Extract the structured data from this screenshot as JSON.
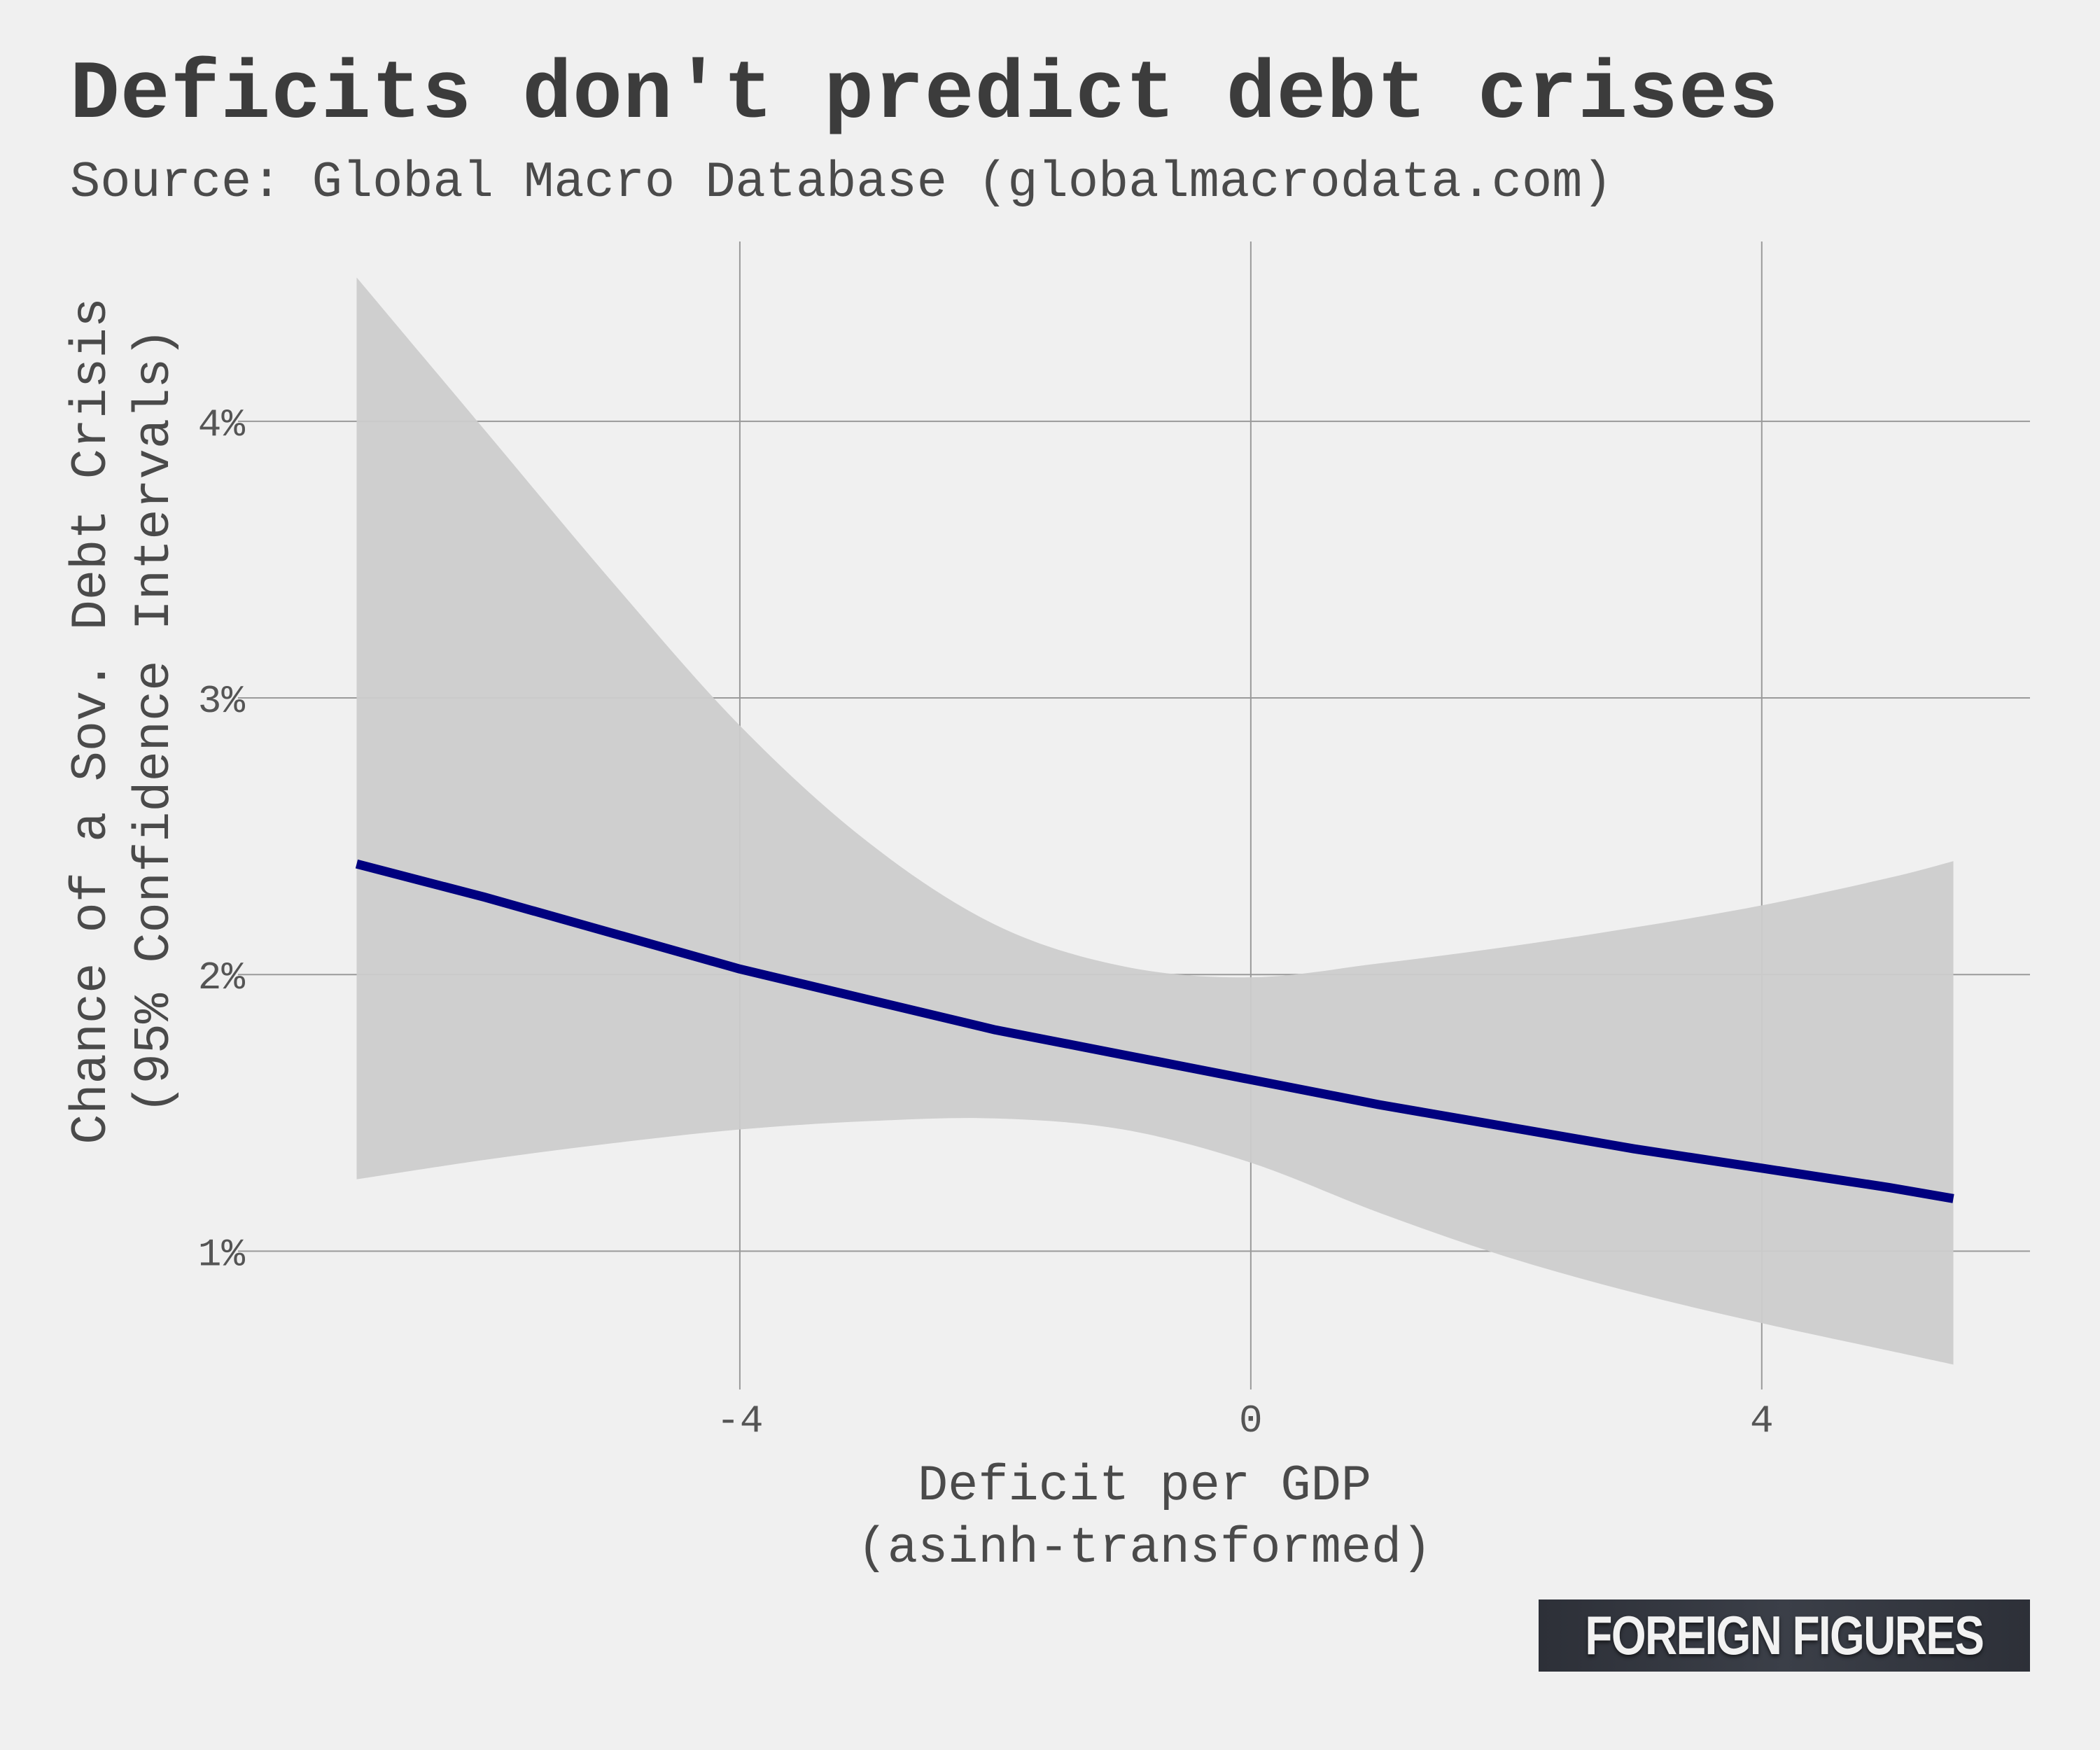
{
  "title": "Deficits don't predict debt crises",
  "subtitle": "Source: Global Macro Database (globalmacrodata.com)",
  "logo": "FOREIGN FIGURES",
  "chart_data": {
    "type": "line",
    "title": "Deficits don't predict debt crises",
    "subtitle": "Source: Global Macro Database (globalmacrodata.com)",
    "xlabel": [
      "Deficit per GDP",
      "(asinh-transformed)"
    ],
    "ylabel": [
      "Chance of a Sov. Debt Crisis",
      "(95% Confidence Intervals)"
    ],
    "xlim": [
      -7.6,
      6.1
    ],
    "ylim": [
      0.5,
      4.65
    ],
    "x_ticks": [
      -4,
      0,
      4
    ],
    "x_tick_labels": [
      "-4",
      "0",
      "4"
    ],
    "y_ticks": [
      1,
      2,
      3,
      4
    ],
    "y_tick_labels": [
      "1%",
      "2%",
      "3%",
      "4%"
    ],
    "grid": true,
    "legend": "none",
    "line_color": "#00007f",
    "band_color": "#cccccc",
    "series": [
      {
        "x": [
          -7,
          -6,
          -5,
          -4,
          -3,
          -2,
          -1,
          0,
          1,
          2,
          3,
          4,
          5,
          5.5
        ],
        "values": [
          2.4,
          2.28,
          2.15,
          2.02,
          1.91,
          1.8,
          1.71,
          1.62,
          1.53,
          1.45,
          1.37,
          1.3,
          1.23,
          1.19
        ]
      }
    ],
    "confidence_band": {
      "label": "95% Confidence Intervals",
      "x": [
        -7,
        -6,
        -5,
        -4,
        -3,
        -2,
        -1,
        0,
        1,
        2,
        3,
        4,
        5,
        5.5
      ],
      "upper": [
        4.52,
        3.97,
        3.42,
        2.9,
        2.48,
        2.18,
        2.03,
        1.99,
        2.04,
        2.1,
        2.17,
        2.25,
        2.35,
        2.41
      ],
      "lower": [
        1.26,
        1.33,
        1.39,
        1.44,
        1.47,
        1.48,
        1.44,
        1.32,
        1.14,
        0.98,
        0.85,
        0.74,
        0.64,
        0.59
      ]
    }
  }
}
